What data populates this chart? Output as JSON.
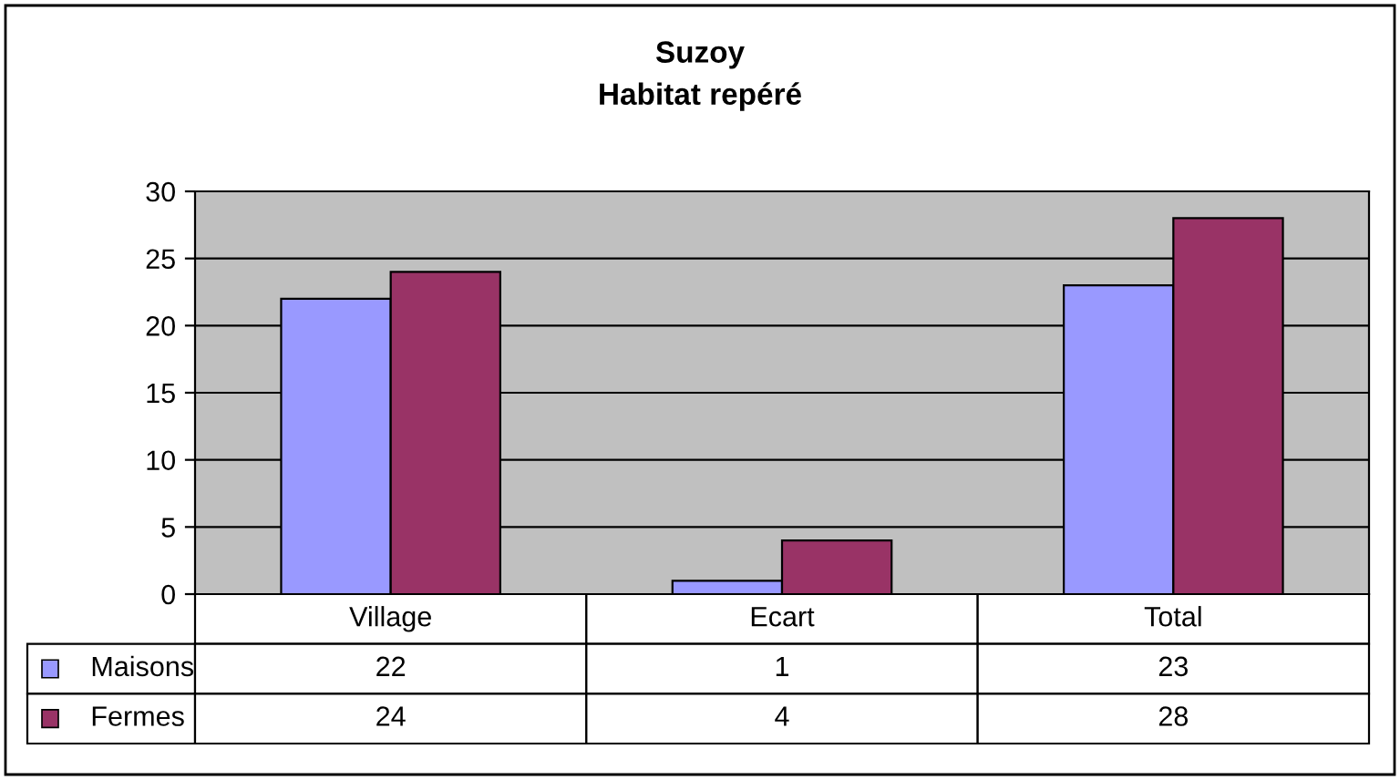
{
  "chart_data": {
    "type": "bar",
    "title": "Suzoy",
    "subtitle": "Habitat repéré",
    "categories": [
      "Village",
      "Ecart",
      "Total"
    ],
    "series": [
      {
        "name": "Maisons",
        "color": "#9999ff",
        "values": [
          22,
          1,
          23
        ]
      },
      {
        "name": "Fermes",
        "color": "#993366",
        "values": [
          24,
          4,
          28
        ]
      }
    ],
    "ylim": [
      0,
      30
    ],
    "yticks": [
      0,
      5,
      10,
      15,
      20,
      25,
      30
    ],
    "grid": "y",
    "legend": "bottom",
    "data_labels": true
  }
}
